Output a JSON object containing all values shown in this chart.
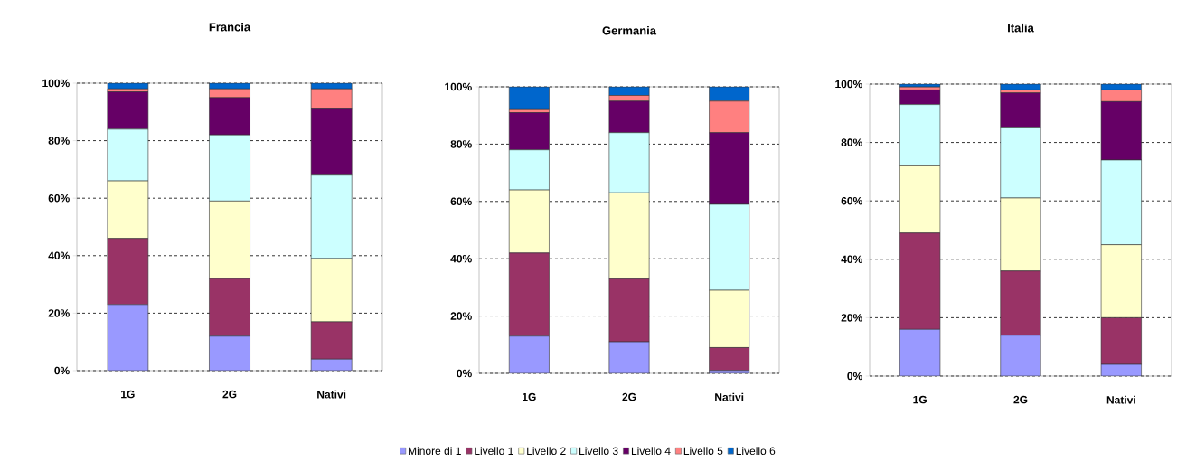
{
  "chart_data": [
    {
      "type": "bar",
      "title": "Francia",
      "categories": [
        "1G",
        "2G",
        "Nativi"
      ],
      "stacked": true,
      "ylim": [
        0,
        100
      ],
      "yticks": [
        {
          "value": 0,
          "label": "0%"
        },
        {
          "value": 20,
          "label": "20%"
        },
        {
          "value": 40,
          "label": "40%"
        },
        {
          "value": 60,
          "label": "60%"
        },
        {
          "value": 80,
          "label": "80%"
        },
        {
          "value": 100,
          "label": "100%"
        }
      ],
      "grid": "y",
      "series": [
        {
          "color": "#9999ff",
          "values": [
            23,
            12,
            4
          ]
        },
        {
          "color": "#993366",
          "values": [
            23,
            20,
            13
          ]
        },
        {
          "color": "#ffffcc",
          "values": [
            20,
            27,
            22
          ]
        },
        {
          "color": "#ccffff",
          "values": [
            18,
            23,
            29
          ]
        },
        {
          "color": "#660066",
          "values": [
            13,
            13,
            23
          ]
        },
        {
          "color": "#ff8080",
          "values": [
            1,
            3,
            7
          ]
        },
        {
          "color": "#0066cc",
          "values": [
            2,
            2,
            2
          ]
        }
      ]
    },
    {
      "type": "bar",
      "title": "Germania",
      "categories": [
        "1G",
        "2G",
        "Nativi"
      ],
      "stacked": true,
      "ylim": [
        0,
        100
      ],
      "yticks": [
        {
          "value": 0,
          "label": "0%"
        },
        {
          "value": 20,
          "label": "20%"
        },
        {
          "value": 40,
          "label": "40%"
        },
        {
          "value": 60,
          "label": "60%"
        },
        {
          "value": 80,
          "label": "80%"
        },
        {
          "value": 100,
          "label": "100%"
        }
      ],
      "grid": "y",
      "legend": "bottom",
      "series": [
        {
          "name": "Minore di 1",
          "color": "#9999ff",
          "values": [
            13,
            11,
            1
          ]
        },
        {
          "name": "Livello 1",
          "color": "#993366",
          "values": [
            29,
            22,
            8
          ]
        },
        {
          "name": "Livello 2",
          "color": "#ffffcc",
          "values": [
            22,
            30,
            20
          ]
        },
        {
          "name": "Livello 3",
          "color": "#ccffff",
          "values": [
            14,
            21,
            30
          ]
        },
        {
          "name": "Livello 4",
          "color": "#660066",
          "values": [
            13,
            11,
            25
          ]
        },
        {
          "name": "Livello 5",
          "color": "#ff8080",
          "values": [
            1,
            2,
            11
          ]
        },
        {
          "name": "Livello 6",
          "color": "#0066cc",
          "values": [
            8,
            3,
            5
          ]
        }
      ]
    },
    {
      "type": "bar",
      "title": "Italia",
      "categories": [
        "1G",
        "2G",
        "Nativi"
      ],
      "stacked": true,
      "ylim": [
        0,
        100
      ],
      "yticks": [
        {
          "value": 0,
          "label": "0%"
        },
        {
          "value": 20,
          "label": "20%"
        },
        {
          "value": 40,
          "label": "40%"
        },
        {
          "value": 60,
          "label": "60%"
        },
        {
          "value": 80,
          "label": "80%"
        },
        {
          "value": 100,
          "label": "100%"
        }
      ],
      "grid": "y",
      "series": [
        {
          "color": "#9999ff",
          "values": [
            16,
            14,
            4
          ]
        },
        {
          "color": "#993366",
          "values": [
            33,
            22,
            16
          ]
        },
        {
          "color": "#ffffcc",
          "values": [
            23,
            25,
            25
          ]
        },
        {
          "color": "#ccffff",
          "values": [
            21,
            24,
            29
          ]
        },
        {
          "color": "#660066",
          "values": [
            5,
            12,
            20
          ]
        },
        {
          "color": "#ff8080",
          "values": [
            1,
            1,
            4
          ]
        },
        {
          "color": "#0066cc",
          "values": [
            1,
            2,
            2
          ]
        }
      ]
    }
  ]
}
